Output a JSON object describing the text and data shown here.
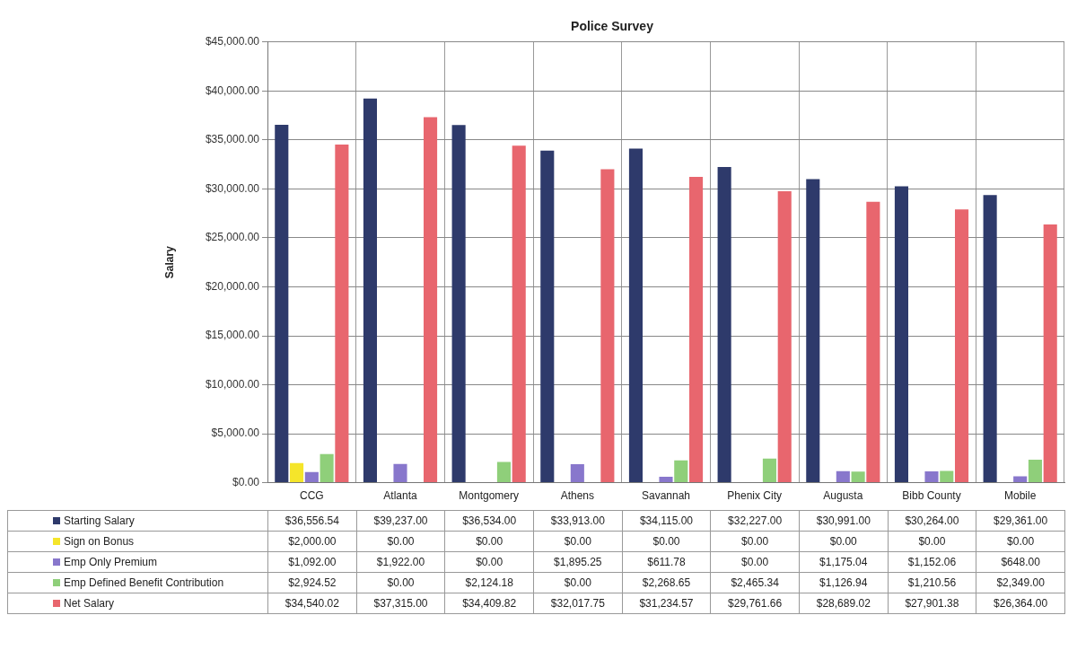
{
  "chart_data": {
    "type": "bar",
    "title": "Police Survey",
    "ylabel": "Salary",
    "categories": [
      "CCG",
      "Atlanta",
      "Montgomery",
      "Athens",
      "Savannah",
      "Phenix City",
      "Augusta",
      "Bibb County",
      "Mobile"
    ],
    "series": [
      {
        "name": "Starting Salary",
        "color": "#2e3a6b",
        "values": [
          36556.54,
          39237.0,
          36534.0,
          33913.0,
          34115.0,
          32227.0,
          30991.0,
          30264.0,
          29361.0
        ],
        "value_labels": [
          "$36,556.54",
          "$39,237.00",
          "$36,534.00",
          "$33,913.00",
          "$34,115.00",
          "$32,227.00",
          "$30,991.00",
          "$30,264.00",
          "$29,361.00"
        ]
      },
      {
        "name": "Sign on Bonus",
        "color": "#f5e52a",
        "values": [
          2000.0,
          0,
          0,
          0,
          0,
          0,
          0,
          0,
          0
        ],
        "value_labels": [
          "$2,000.00",
          "$0.00",
          "$0.00",
          "$0.00",
          "$0.00",
          "$0.00",
          "$0.00",
          "$0.00",
          "$0.00"
        ]
      },
      {
        "name": "Emp Only Premium",
        "color": "#8877cc",
        "values": [
          1092.0,
          1922.0,
          0,
          1895.25,
          611.78,
          0,
          1175.04,
          1152.06,
          648.0
        ],
        "value_labels": [
          "$1,092.00",
          "$1,922.00",
          "$0.00",
          "$1,895.25",
          "$611.78",
          "$0.00",
          "$1,175.04",
          "$1,152.06",
          "$648.00"
        ]
      },
      {
        "name": "Emp Defined Benefit Contribution",
        "color": "#8fcf7a",
        "values": [
          2924.52,
          0,
          2124.18,
          0,
          2268.65,
          2465.34,
          1126.94,
          1210.56,
          2349.0
        ],
        "value_labels": [
          "$2,924.52",
          "$0.00",
          "$2,124.18",
          "$0.00",
          "$2,268.65",
          "$2,465.34",
          "$1,126.94",
          "$1,210.56",
          "$2,349.00"
        ]
      },
      {
        "name": "Net Salary",
        "color": "#e8666e",
        "values": [
          34540.02,
          37315.0,
          34409.82,
          32017.75,
          31234.57,
          29761.66,
          28689.02,
          27901.38,
          26364.0
        ],
        "value_labels": [
          "$34,540.02",
          "$37,315.00",
          "$34,409.82",
          "$32,017.75",
          "$31,234.57",
          "$29,761.66",
          "$28,689.02",
          "$27,901.38",
          "$26,364.00"
        ]
      }
    ],
    "ylim": [
      0,
      45000
    ],
    "yticks": [
      {
        "value": 0,
        "label": "$0.00"
      },
      {
        "value": 5000,
        "label": "$5,000.00"
      },
      {
        "value": 10000,
        "label": "$10,000.00"
      },
      {
        "value": 15000,
        "label": "$15,000.00"
      },
      {
        "value": 20000,
        "label": "$20,000.00"
      },
      {
        "value": 25000,
        "label": "$25,000.00"
      },
      {
        "value": 30000,
        "label": "$30,000.00"
      },
      {
        "value": 35000,
        "label": "$35,000.00"
      },
      {
        "value": 40000,
        "label": "$40,000.00"
      },
      {
        "value": 45000,
        "label": "$45,000.00"
      }
    ],
    "grid": "y",
    "legend": "bottom"
  }
}
